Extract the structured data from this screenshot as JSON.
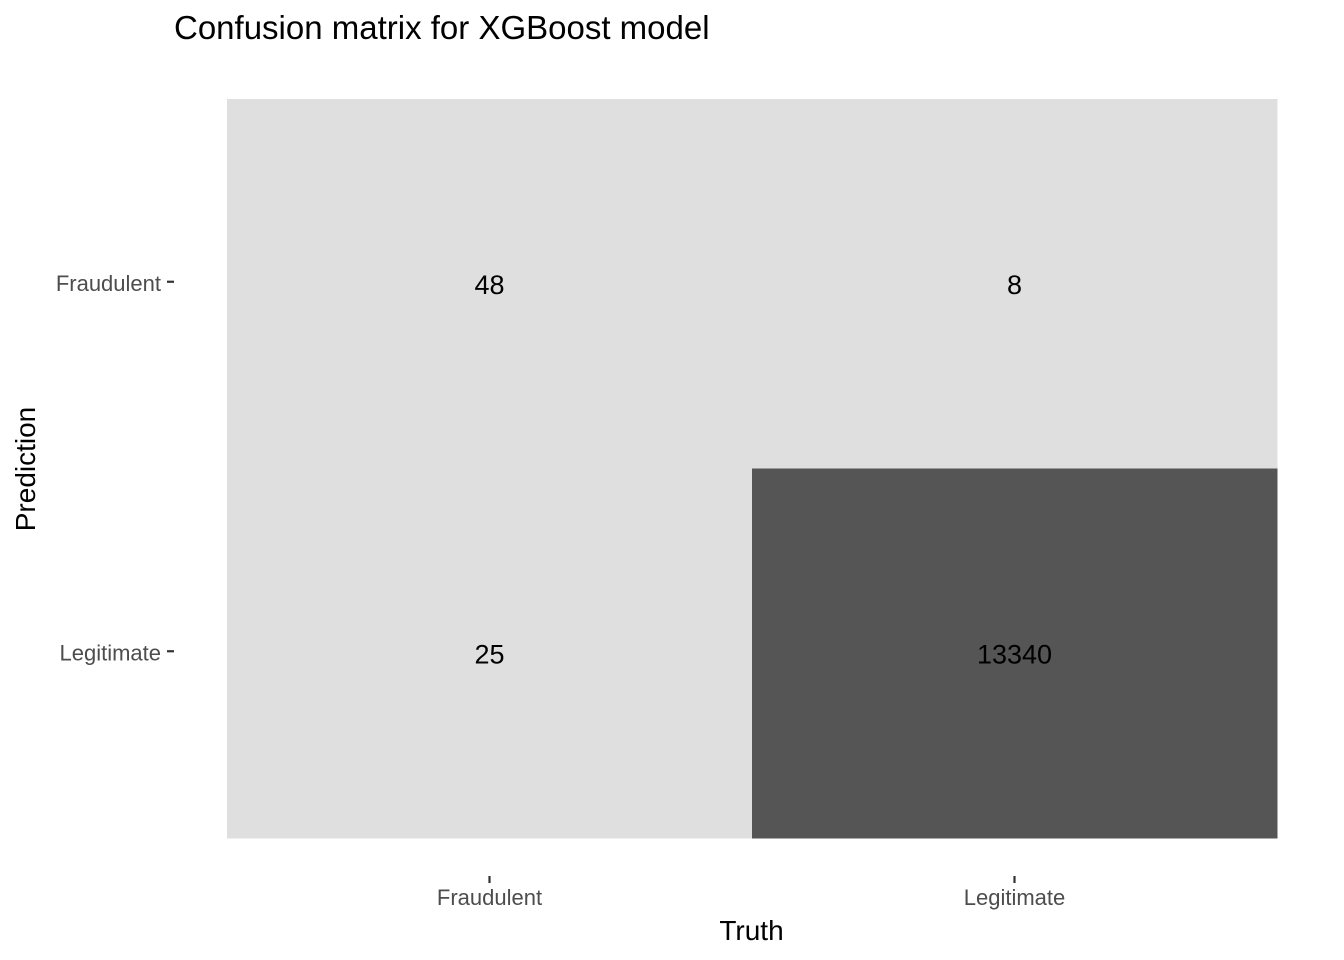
{
  "chart_data": {
    "type": "heatmap",
    "title": "Confusion matrix for XGBoost model",
    "xlabel": "Truth",
    "ylabel": "Prediction",
    "x_categories": [
      "Fraudulent",
      "Legitimate"
    ],
    "y_categories": [
      "Fraudulent",
      "Legitimate"
    ],
    "cells": [
      {
        "truth": "Fraudulent",
        "prediction": "Fraudulent",
        "value": 48
      },
      {
        "truth": "Legitimate",
        "prediction": "Fraudulent",
        "value": 8
      },
      {
        "truth": "Fraudulent",
        "prediction": "Legitimate",
        "value": 25
      },
      {
        "truth": "Legitimate",
        "prediction": "Legitimate",
        "value": 13340
      }
    ],
    "color_low": "#dfdfdf",
    "color_high": "#555555",
    "grid": false,
    "legend": "none"
  }
}
